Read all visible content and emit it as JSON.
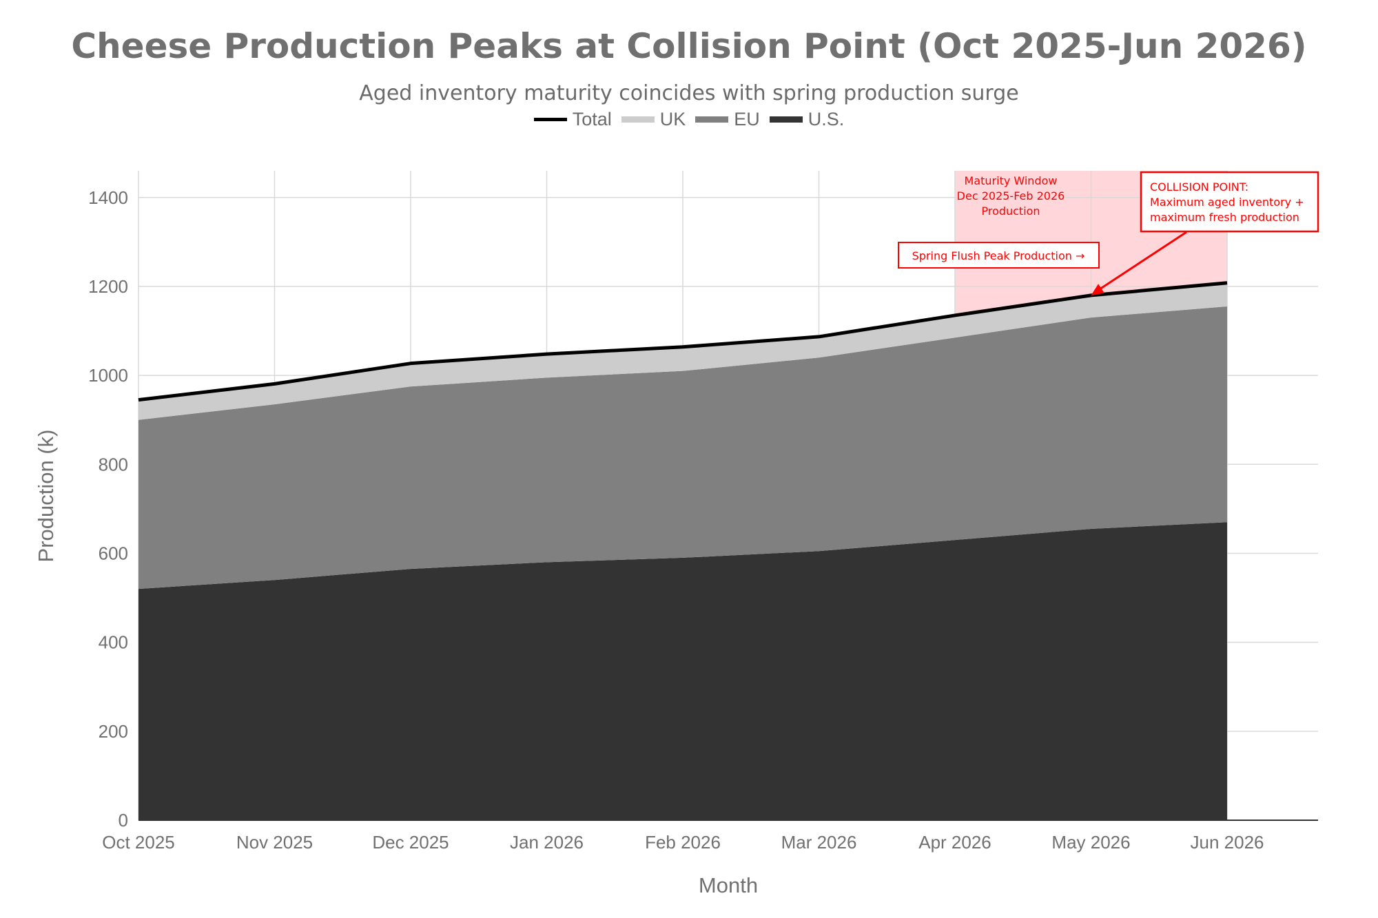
{
  "chart_data": {
    "type": "area",
    "stacked": true,
    "title": "Cheese Production Peaks at Collision Point (Oct 2025-Jun 2026)",
    "subtitle": "Aged inventory maturity coincides with spring production surge",
    "xlabel": "Month",
    "ylabel": "Production (k)",
    "categories": [
      "Oct 2025",
      "Nov 2025",
      "Dec 2025",
      "Jan 2026",
      "Feb 2026",
      "Mar 2026",
      "Apr 2026",
      "May 2026",
      "Jun 2026"
    ],
    "ylim": [
      0,
      1460
    ],
    "yticks": [
      0,
      200,
      400,
      600,
      800,
      1000,
      1200,
      1400
    ],
    "grid": true,
    "legend_position": "top-center",
    "legend": [
      "Total",
      "UK",
      "EU",
      "U.S."
    ],
    "series": [
      {
        "name": "U.S.",
        "color": "#333333",
        "values": [
          520,
          540,
          565,
          580,
          590,
          605,
          630,
          655,
          670
        ]
      },
      {
        "name": "EU",
        "color": "#808080",
        "values": [
          380,
          395,
          410,
          415,
          420,
          435,
          455,
          475,
          485
        ]
      },
      {
        "name": "UK",
        "color": "#cccccc",
        "values": [
          45,
          46,
          52,
          53,
          54,
          47,
          50,
          50,
          53
        ]
      },
      {
        "name": "Total",
        "color": "#000000",
        "values": [
          945,
          981,
          1027,
          1048,
          1064,
          1087,
          1135,
          1180,
          1208
        ]
      }
    ],
    "highlight_region": {
      "from": "Apr 2026",
      "to": "Jun 2026",
      "color": "#ffd6d9"
    },
    "annotations": {
      "maturity_window": [
        "Maturity Window",
        "Dec 2025-Feb 2026",
        "Production"
      ],
      "spring_flush": "Spring Flush Peak Production →",
      "collision": [
        "COLLISION POINT:",
        "Maximum aged inventory +",
        "maximum fresh production"
      ],
      "collision_target": "May 2026"
    }
  }
}
